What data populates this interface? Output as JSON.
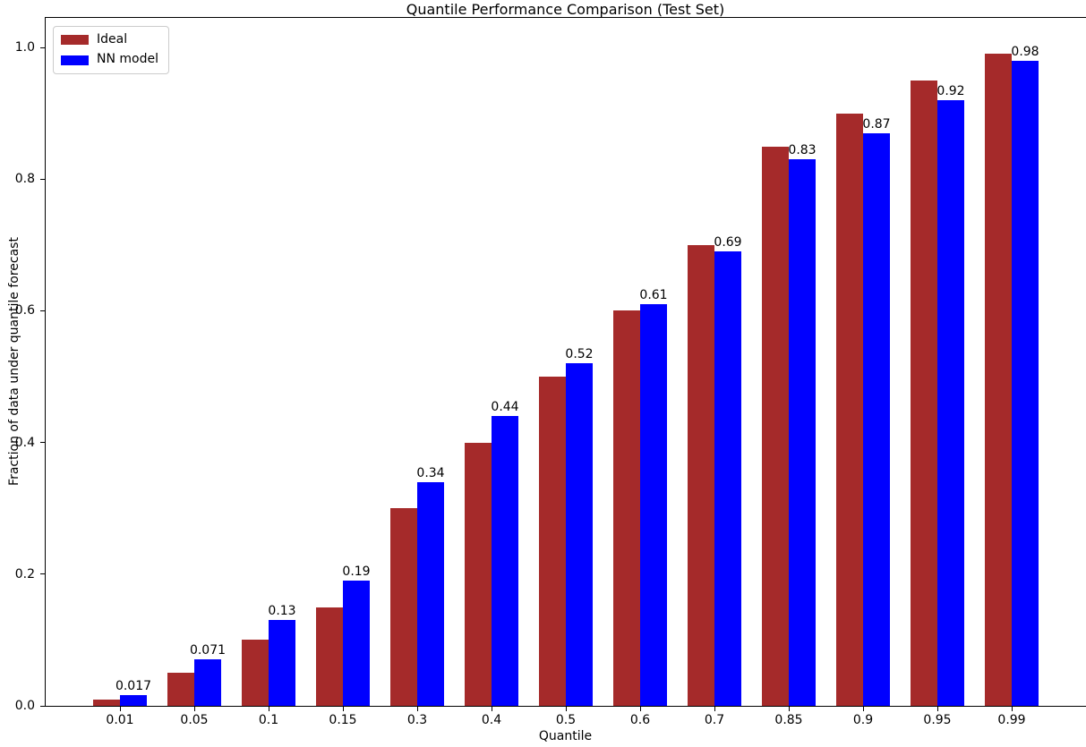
{
  "chart_data": {
    "type": "bar",
    "title": "Quantile Performance Comparison (Test Set)",
    "xlabel": "Quantile",
    "ylabel": "Fraction of data under quantile forecast",
    "categories": [
      "0.01",
      "0.05",
      "0.1",
      "0.15",
      "0.3",
      "0.4",
      "0.5",
      "0.6",
      "0.7",
      "0.85",
      "0.9",
      "0.95",
      "0.99"
    ],
    "series": [
      {
        "name": "Ideal",
        "color": "#a52a2a",
        "values": [
          0.01,
          0.05,
          0.1,
          0.15,
          0.3,
          0.4,
          0.5,
          0.6,
          0.7,
          0.85,
          0.9,
          0.95,
          0.99
        ]
      },
      {
        "name": "NN model",
        "color": "#0000ff",
        "values": [
          0.017,
          0.071,
          0.13,
          0.19,
          0.34,
          0.44,
          0.52,
          0.61,
          0.69,
          0.83,
          0.87,
          0.92,
          0.98
        ],
        "bar_labels": [
          "0.017",
          "0.071",
          "0.13",
          "0.19",
          "0.34",
          "0.44",
          "0.52",
          "0.61",
          "0.69",
          "0.83",
          "0.87",
          "0.92",
          "0.98"
        ]
      }
    ],
    "yticks": [
      0.0,
      0.2,
      0.4,
      0.6,
      0.8,
      1.0
    ],
    "ytick_labels": [
      "0.0",
      "0.2",
      "0.4",
      "0.6",
      "0.8",
      "1.0"
    ],
    "ylim": [
      0,
      1.045
    ],
    "legend_position": "upper left",
    "grid": false,
    "axis_color": "#000000",
    "background_color": "#ffffff"
  }
}
